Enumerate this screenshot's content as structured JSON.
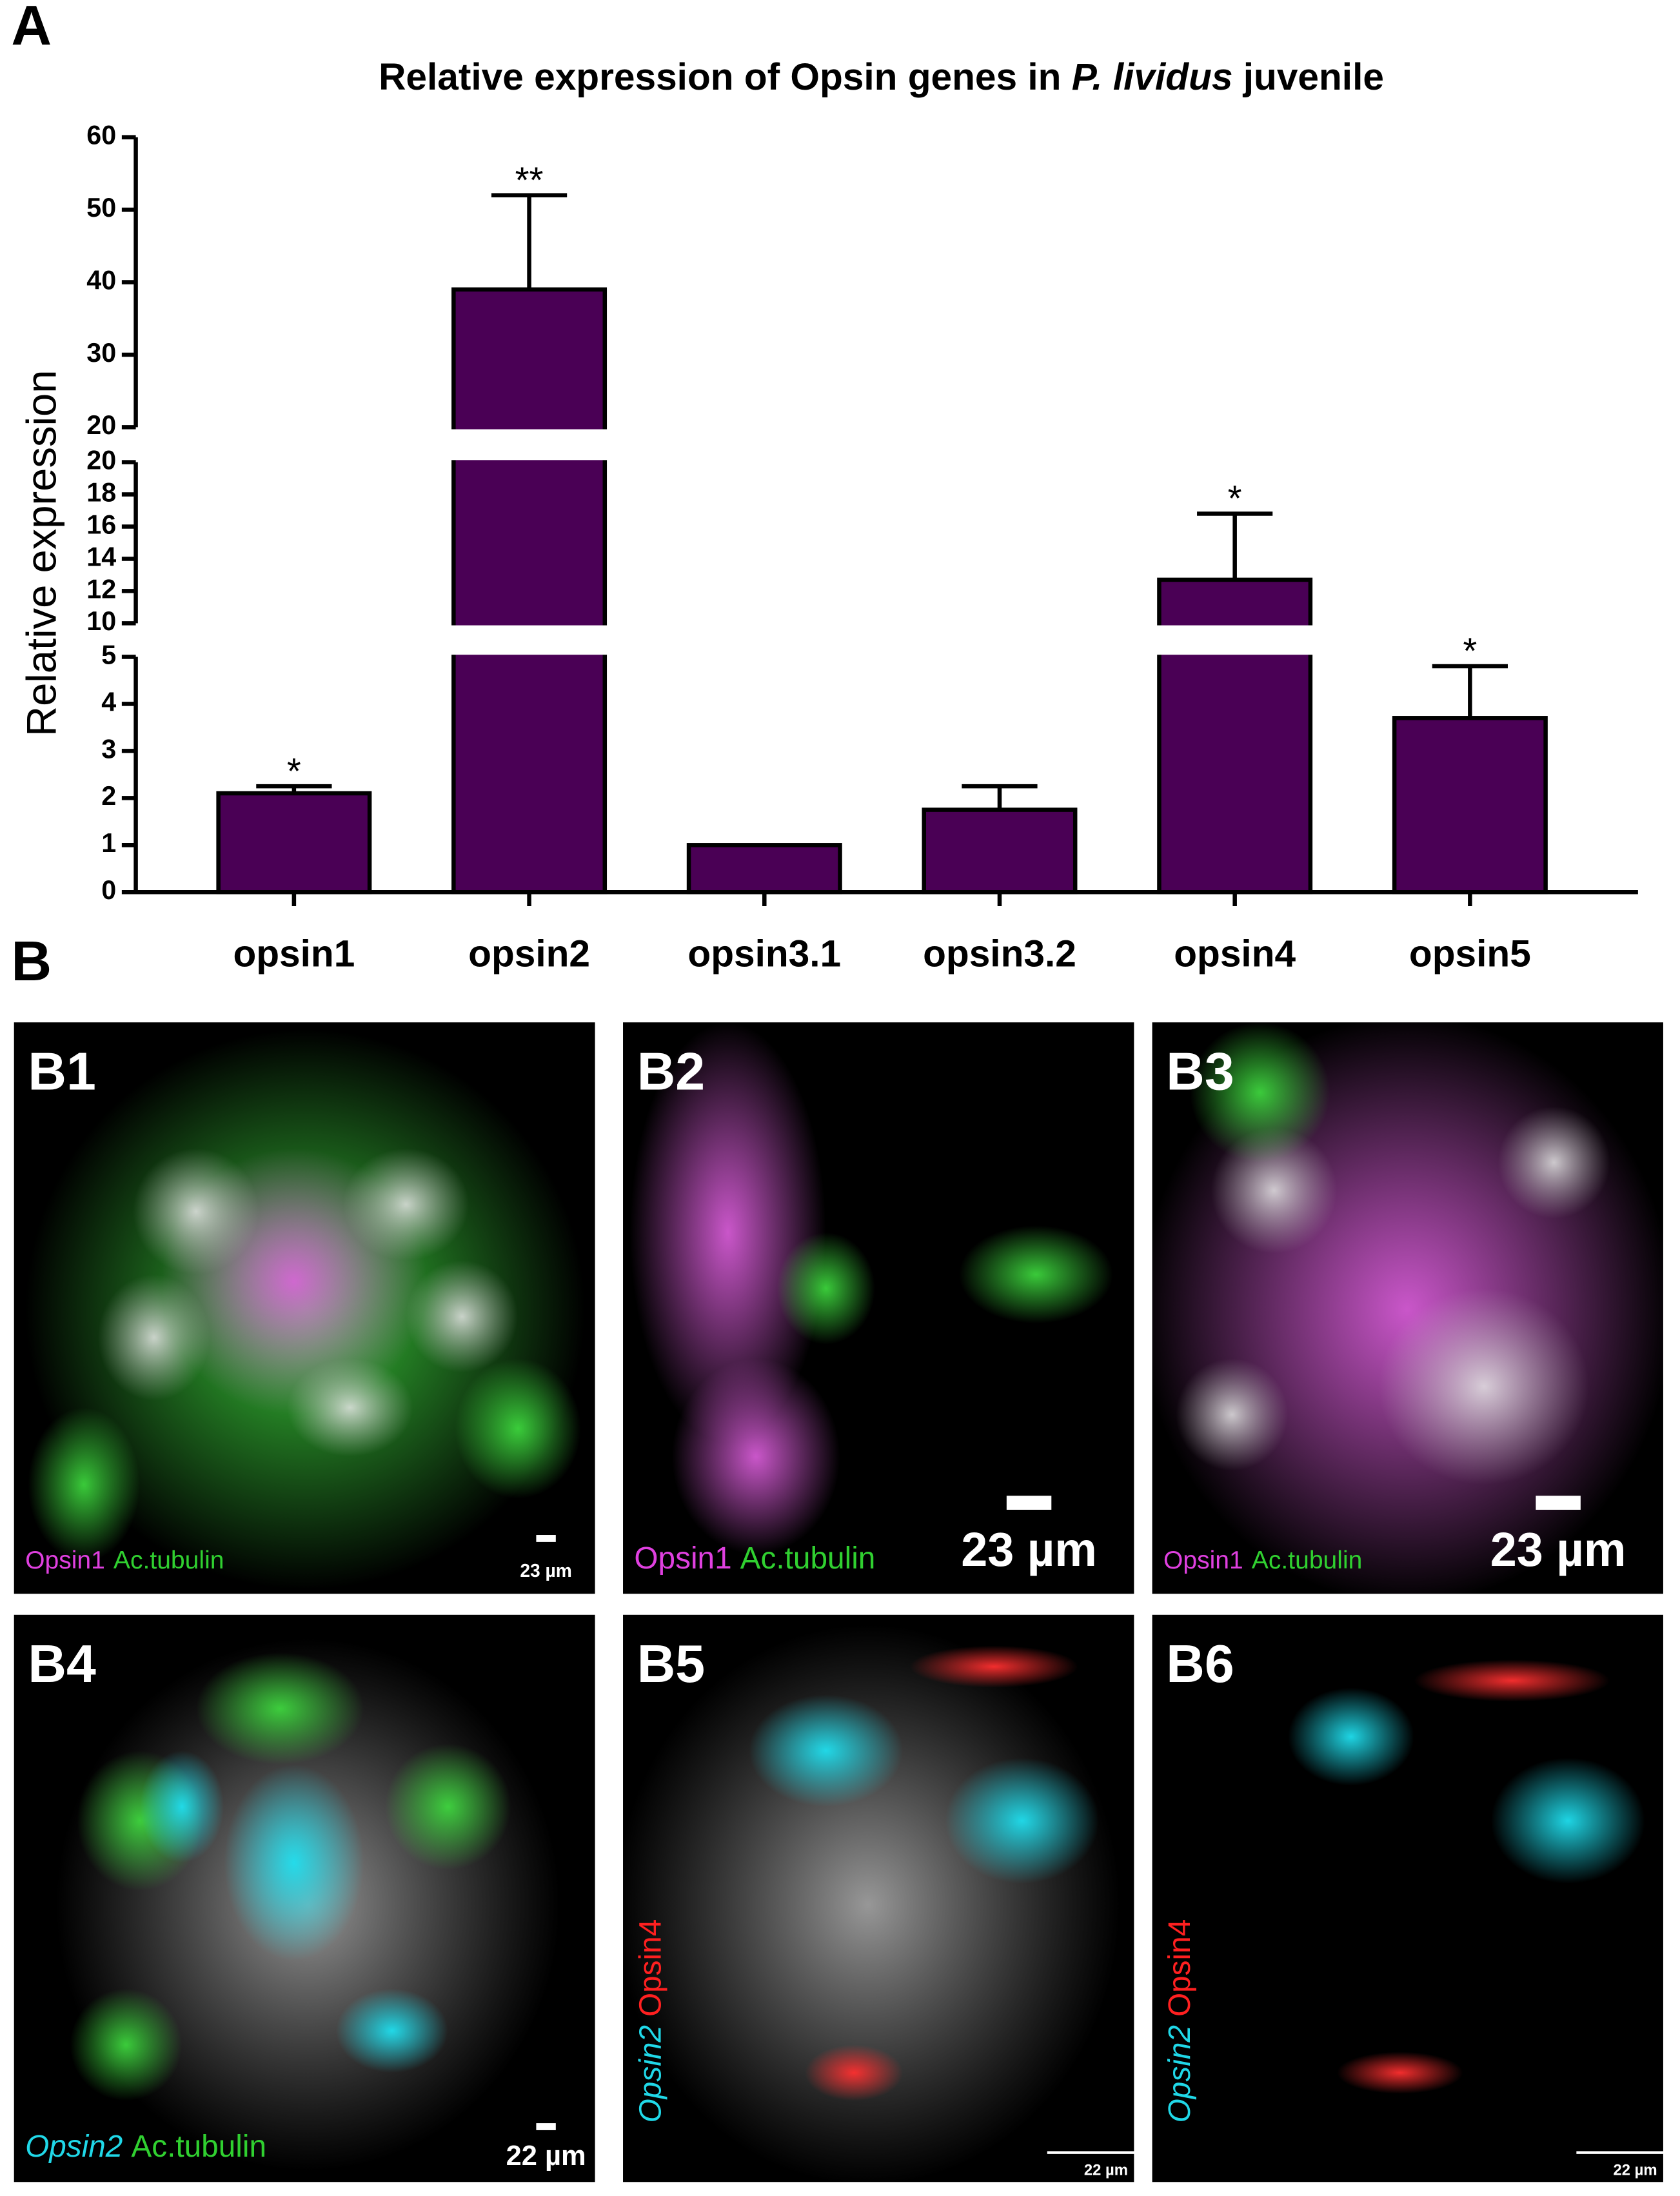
{
  "figure_labels": {
    "a": "A",
    "b": "B"
  },
  "chart_data": {
    "type": "bar",
    "title_parts": [
      "Relative expression of Opsin genes in ",
      "P. lividus",
      " juvenile"
    ],
    "y_label": "Relative expression",
    "categories": [
      "opsin1",
      "opsin2",
      "opsin3.1",
      "opsin3.2",
      "opsin4",
      "opsin5"
    ],
    "values": [
      2.1,
      39,
      1.0,
      1.75,
      12.7,
      3.7
    ],
    "errors": [
      0.15,
      13,
      null,
      0.5,
      4.1,
      1.1
    ],
    "annotations": [
      "*",
      "**",
      null,
      null,
      "*",
      "*"
    ],
    "color": "#4a0055",
    "axis_segments": [
      {
        "ylim": [
          0,
          5
        ],
        "yticks": [
          0,
          1,
          2,
          3,
          4,
          5
        ]
      },
      {
        "ylim": [
          10,
          20
        ],
        "yticks": [
          10,
          12,
          14,
          16,
          18,
          20
        ]
      },
      {
        "ylim": [
          20,
          60
        ],
        "yticks": [
          20,
          30,
          40,
          50,
          60
        ]
      }
    ]
  },
  "panels": [
    {
      "label": "B1",
      "caption": [
        {
          "text": "Opsin1",
          "color": "#e040e0",
          "italic": false
        },
        {
          "text": "Ac.tubulin",
          "color": "#30d030",
          "italic": false
        }
      ],
      "scale": "23 µm"
    },
    {
      "label": "B2",
      "caption": [
        {
          "text": "Opsin1",
          "color": "#e040e0",
          "italic": false
        },
        {
          "text": "Ac.tubulin",
          "color": "#30d030",
          "italic": false
        }
      ],
      "scale": "23 µm"
    },
    {
      "label": "B3",
      "caption": [
        {
          "text": "Opsin1",
          "color": "#e040e0",
          "italic": false
        },
        {
          "text": "Ac.tubulin",
          "color": "#30d030",
          "italic": false
        }
      ],
      "scale": "23 µm"
    },
    {
      "label": "B4",
      "caption": [
        {
          "text": "Opsin2",
          "color": "#20d8e8",
          "italic": true
        },
        {
          "text": "Ac.tubulin",
          "color": "#30d030",
          "italic": false
        }
      ],
      "scale": "22 µm"
    },
    {
      "label": "B5",
      "caption": [
        {
          "text": "Opsin2",
          "color": "#20d8e8",
          "italic": true
        },
        {
          "text": "Opsin4",
          "color": "#ff2020",
          "italic": false
        }
      ],
      "scale": "22 µm"
    },
    {
      "label": "B6",
      "caption": [
        {
          "text": "Opsin2",
          "color": "#20d8e8",
          "italic": true
        },
        {
          "text": "Opsin4",
          "color": "#ff2020",
          "italic": false
        }
      ],
      "scale": "22 µm"
    }
  ]
}
